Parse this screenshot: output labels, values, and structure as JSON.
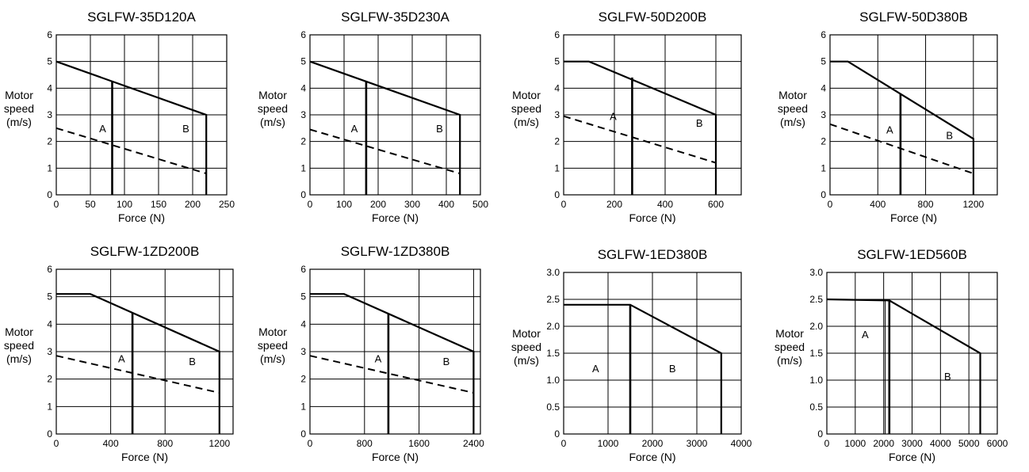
{
  "chart_data": [
    {
      "type": "line",
      "title": "SGLFW-35D120A",
      "xlabel": "Force (N)",
      "ylabel": [
        "Motor",
        "speed",
        "(m/s)"
      ],
      "xlim": [
        0,
        250
      ],
      "ylim": [
        0,
        6
      ],
      "xticks": [
        0,
        50,
        100,
        150,
        200,
        250
      ],
      "yticks": [
        0,
        1,
        2,
        3,
        4,
        5,
        6
      ],
      "xtick_labels": [
        "0",
        "50",
        "100",
        "150",
        "200",
        "250"
      ],
      "ytick_labels": [
        "0",
        "1",
        "2",
        "3",
        "4",
        "5",
        "6"
      ],
      "series": [
        {
          "style": "solid",
          "points": [
            [
              0,
              5
            ],
            [
              220,
              3
            ],
            [
              220,
              0
            ]
          ]
        },
        {
          "style": "dashed",
          "points": [
            [
              0,
              2.5
            ],
            [
              220,
              0.8
            ]
          ]
        },
        {
          "style": "solid",
          "points": [
            [
              82,
              4.25
            ],
            [
              82,
              0
            ]
          ]
        }
      ],
      "regions": [
        {
          "label": "A",
          "x": 68,
          "y": 2.5
        },
        {
          "label": "B",
          "x": 190,
          "y": 2.5
        }
      ]
    },
    {
      "type": "line",
      "title": "SGLFW-35D230A",
      "xlabel": "Force (N)",
      "ylabel": [
        "Motor",
        "speed",
        "(m/s)"
      ],
      "xlim": [
        0,
        500
      ],
      "ylim": [
        0,
        6
      ],
      "xticks": [
        0,
        100,
        200,
        300,
        400,
        500
      ],
      "yticks": [
        0,
        1,
        2,
        3,
        4,
        5,
        6
      ],
      "xtick_labels": [
        "0",
        "100",
        "200",
        "300",
        "400",
        "500"
      ],
      "ytick_labels": [
        "0",
        "1",
        "2",
        "3",
        "4",
        "5",
        "6"
      ],
      "series": [
        {
          "style": "solid",
          "points": [
            [
              0,
              5
            ],
            [
              440,
              3
            ],
            [
              440,
              0
            ]
          ]
        },
        {
          "style": "dashed",
          "points": [
            [
              0,
              2.45
            ],
            [
              440,
              0.8
            ]
          ]
        },
        {
          "style": "solid",
          "points": [
            [
              165,
              4.25
            ],
            [
              165,
              0
            ]
          ]
        }
      ],
      "regions": [
        {
          "label": "A",
          "x": 130,
          "y": 2.5
        },
        {
          "label": "B",
          "x": 380,
          "y": 2.5
        }
      ]
    },
    {
      "type": "line",
      "title": "SGLFW-50D200B",
      "xlabel": "Force (N)",
      "ylabel": [
        "Motor",
        "speed",
        "(m/s)"
      ],
      "xlim": [
        0,
        700
      ],
      "ylim": [
        0,
        6
      ],
      "xticks": [
        0,
        200,
        400,
        600,
        700
      ],
      "yticks": [
        0,
        1,
        2,
        3,
        4,
        5,
        6
      ],
      "xtick_labels": [
        "0",
        "200",
        "400",
        "600",
        ""
      ],
      "ytick_labels": [
        "0",
        "1",
        "2",
        "3",
        "4",
        "5",
        "6"
      ],
      "series": [
        {
          "style": "solid",
          "points": [
            [
              0,
              5
            ],
            [
              100,
              5
            ],
            [
              600,
              3
            ],
            [
              600,
              0
            ]
          ]
        },
        {
          "style": "dashed",
          "points": [
            [
              0,
              2.95
            ],
            [
              600,
              1.2
            ]
          ]
        },
        {
          "style": "solid",
          "points": [
            [
              270,
              4.4
            ],
            [
              270,
              0
            ]
          ]
        }
      ],
      "regions": [
        {
          "label": "A",
          "x": 195,
          "y": 2.95
        },
        {
          "label": "B",
          "x": 535,
          "y": 2.7
        }
      ]
    },
    {
      "type": "line",
      "title": "SGLFW-50D380B",
      "xlabel": "Force (N)",
      "ylabel": [
        "Motor",
        "speed",
        "(m/s)"
      ],
      "xlim": [
        0,
        1400
      ],
      "ylim": [
        0,
        6
      ],
      "xticks": [
        0,
        400,
        800,
        1200,
        1400
      ],
      "yticks": [
        0,
        1,
        2,
        3,
        4,
        5,
        6
      ],
      "xtick_labels": [
        "0",
        "400",
        "800",
        "1200",
        ""
      ],
      "ytick_labels": [
        "0",
        "1",
        "2",
        "3",
        "4",
        "5",
        "6"
      ],
      "series": [
        {
          "style": "solid",
          "points": [
            [
              0,
              5
            ],
            [
              150,
              5
            ],
            [
              1200,
              2.1
            ],
            [
              1200,
              0
            ]
          ]
        },
        {
          "style": "dashed",
          "points": [
            [
              0,
              2.65
            ],
            [
              1200,
              0.8
            ]
          ]
        },
        {
          "style": "solid",
          "points": [
            [
              590,
              3.8
            ],
            [
              590,
              0
            ]
          ]
        }
      ],
      "regions": [
        {
          "label": "A",
          "x": 500,
          "y": 2.45
        },
        {
          "label": "B",
          "x": 1000,
          "y": 2.25
        }
      ]
    },
    {
      "type": "line",
      "title": "SGLFW-1ZD200B",
      "xlabel": "Force (N)",
      "ylabel": [
        "Motor",
        "speed",
        "(m/s)"
      ],
      "xlim": [
        0,
        1300
      ],
      "ylim": [
        0,
        6
      ],
      "xticks": [
        0,
        400,
        800,
        1200,
        1300
      ],
      "yticks": [
        0,
        1,
        2,
        3,
        4,
        5,
        6
      ],
      "xtick_labels": [
        "0",
        "400",
        "800",
        "1200",
        ""
      ],
      "ytick_labels": [
        "0",
        "1",
        "2",
        "3",
        "4",
        "5",
        "6"
      ],
      "series": [
        {
          "style": "solid",
          "points": [
            [
              0,
              5.1
            ],
            [
              250,
              5.1
            ],
            [
              1200,
              3
            ],
            [
              1200,
              0
            ]
          ]
        },
        {
          "style": "dashed",
          "points": [
            [
              0,
              2.85
            ],
            [
              1200,
              1.5
            ]
          ]
        },
        {
          "style": "solid",
          "points": [
            [
              560,
              4.4
            ],
            [
              560,
              0
            ]
          ]
        }
      ],
      "regions": [
        {
          "label": "A",
          "x": 480,
          "y": 2.75
        },
        {
          "label": "B",
          "x": 1000,
          "y": 2.65
        }
      ]
    },
    {
      "type": "line",
      "title": "SGLFW-1ZD380B",
      "xlabel": "Force (N)",
      "ylabel": [
        "Motor",
        "speed",
        "(m/s)"
      ],
      "xlim": [
        0,
        2500
      ],
      "ylim": [
        0,
        6
      ],
      "xticks": [
        0,
        800,
        1600,
        2400,
        2500
      ],
      "yticks": [
        0,
        1,
        2,
        3,
        4,
        5,
        6
      ],
      "xtick_labels": [
        "0",
        "800",
        "1600",
        "2400",
        ""
      ],
      "ytick_labels": [
        "0",
        "1",
        "2",
        "3",
        "4",
        "5",
        "6"
      ],
      "series": [
        {
          "style": "solid",
          "points": [
            [
              0,
              5.1
            ],
            [
              500,
              5.1
            ],
            [
              2400,
              3
            ],
            [
              2400,
              0
            ]
          ]
        },
        {
          "style": "dashed",
          "points": [
            [
              0,
              2.85
            ],
            [
              2400,
              1.5
            ]
          ]
        },
        {
          "style": "solid",
          "points": [
            [
              1150,
              4.4
            ],
            [
              1150,
              0
            ]
          ]
        }
      ],
      "regions": [
        {
          "label": "A",
          "x": 1000,
          "y": 2.75
        },
        {
          "label": "B",
          "x": 2000,
          "y": 2.65
        }
      ]
    },
    {
      "type": "line",
      "title": "SGLFW-1ED380B",
      "xlabel": "Force (N)",
      "ylabel": [
        "Motor",
        "speed",
        "(m/s)"
      ],
      "xlim": [
        0,
        4000
      ],
      "ylim": [
        0,
        3.0
      ],
      "xticks": [
        0,
        1000,
        2000,
        3000,
        4000
      ],
      "yticks": [
        0,
        0.5,
        1.0,
        1.5,
        2.0,
        2.5,
        3.0
      ],
      "xtick_labels": [
        "0",
        "1000",
        "2000",
        "3000",
        "4000"
      ],
      "ytick_labels": [
        "0",
        "0.5",
        "1.0",
        "1.5",
        "2.0",
        "2.5",
        "3.0"
      ],
      "series": [
        {
          "style": "solid",
          "points": [
            [
              0,
              2.4
            ],
            [
              1500,
              2.4
            ],
            [
              3550,
              1.5
            ],
            [
              3550,
              0
            ]
          ]
        },
        {
          "style": "solid",
          "points": [
            [
              1500,
              2.4
            ],
            [
              1500,
              0
            ]
          ]
        }
      ],
      "regions": [
        {
          "label": "A",
          "x": 720,
          "y": 1.22
        },
        {
          "label": "B",
          "x": 2450,
          "y": 1.22
        }
      ]
    },
    {
      "type": "line",
      "title": "SGLFW-1ED560B",
      "xlabel": "Force (N)",
      "ylabel": [
        "Motor",
        "speed",
        "(m/s)"
      ],
      "xlim": [
        0,
        6000
      ],
      "ylim": [
        0,
        3.0
      ],
      "xticks": [
        0,
        1000,
        2000,
        3000,
        4000,
        5000,
        6000
      ],
      "yticks": [
        0,
        0.5,
        1.0,
        1.5,
        2.0,
        2.5,
        3.0
      ],
      "xtick_labels": [
        "0",
        "1000",
        "2000",
        "3000",
        "4000",
        "5000",
        "6000"
      ],
      "ytick_labels": [
        "0",
        "0.5",
        "1.0",
        "1.5",
        "2.0",
        "2.5",
        "3.0"
      ],
      "series": [
        {
          "style": "solid",
          "points": [
            [
              0,
              2.5
            ],
            [
              2200,
              2.48
            ],
            [
              5400,
              1.5
            ],
            [
              5400,
              0
            ]
          ]
        },
        {
          "style": "solid",
          "points": [
            [
              2200,
              2.48
            ],
            [
              2200,
              0
            ]
          ]
        },
        {
          "style": "thin",
          "points": [
            [
              2050,
              2.48
            ],
            [
              2050,
              0
            ]
          ]
        }
      ],
      "regions": [
        {
          "label": "A",
          "x": 1350,
          "y": 1.85
        },
        {
          "label": "B",
          "x": 4250,
          "y": 1.07
        }
      ]
    }
  ]
}
